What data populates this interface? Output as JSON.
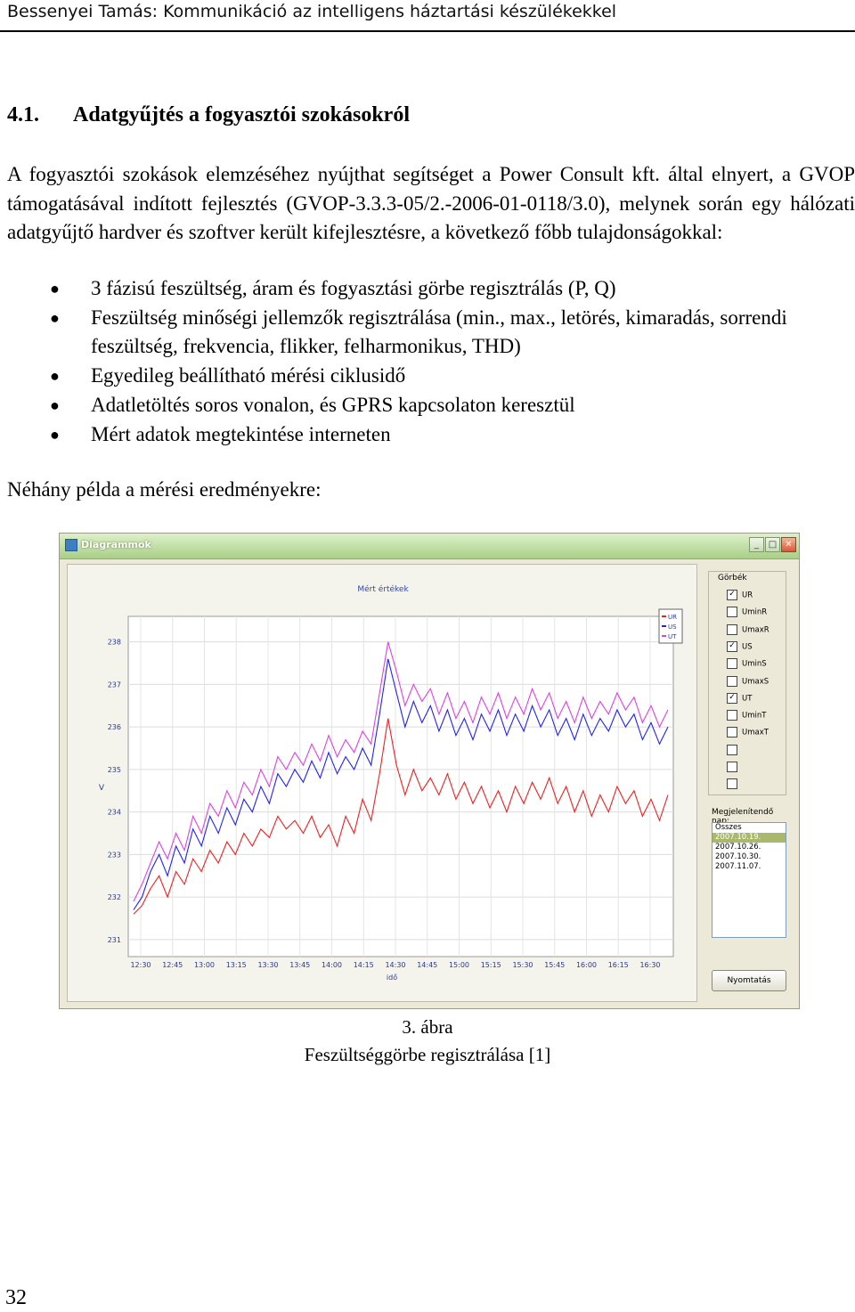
{
  "header": "Bessenyei Tamás: Kommunikáció az intelligens háztartási készülékekkel",
  "section": {
    "number": "4.1.",
    "title": "Adatgyűjtés a fogyasztói szokásokról"
  },
  "paragraph": "A fogyasztói szokások elemzéséhez nyújthat segítséget a Power Consult kft. által elnyert, a GVOP támogatásával indított fejlesztés (GVOP-3.3.3-05/2.-2006-01-0118/3.0), melynek során egy hálózati adatgyűjtő hardver és szoftver került kifejlesztésre, a következő főbb tulajdonságokkal:",
  "bullets": [
    "3 fázisú feszültség, áram és fogyasztási görbe regisztrálás (P, Q)",
    "Feszültség minőségi jellemzők regisztrálása (min., max., letörés, kimaradás, sorrendi feszültség, frekvencia, flikker, felharmonikus, THD)",
    "Egyedileg beállítható mérési ciklusidő",
    "Adatletöltés soros vonalon, és GPRS kapcsolaton keresztül",
    "Mért adatok megtekintése interneten"
  ],
  "examples_intro": "Néhány példa a mérési eredményekre:",
  "window": {
    "title": "Diagrammok",
    "checkbox_group_label": "Görbék",
    "checkboxes": [
      {
        "label": "UR",
        "checked": true
      },
      {
        "label": "UminR",
        "checked": false
      },
      {
        "label": "UmaxR",
        "checked": false
      },
      {
        "label": "US",
        "checked": true
      },
      {
        "label": "UminS",
        "checked": false
      },
      {
        "label": "UmaxS",
        "checked": false
      },
      {
        "label": "UT",
        "checked": true
      },
      {
        "label": "UminT",
        "checked": false
      },
      {
        "label": "UmaxT",
        "checked": false
      },
      {
        "label": "",
        "checked": false
      },
      {
        "label": "",
        "checked": false
      },
      {
        "label": "",
        "checked": false
      }
    ],
    "day_list_label": "Megjelenítendő nap:",
    "days": [
      "Összes",
      "2007.10.19.",
      "2007.10.26.",
      "2007.10.30.",
      "2007.11.07."
    ],
    "selected_day": "2007.10.19.",
    "print_button": "Nyomtatás"
  },
  "chart_data": {
    "type": "line",
    "title": "Mért értékek",
    "xlabel": "idő",
    "ylabel": "V",
    "ylim": [
      230.6,
      238.6
    ],
    "yticks": [
      238,
      237,
      236,
      235,
      234,
      233,
      232,
      231
    ],
    "xticks": [
      "12:30",
      "12:45",
      "13:00",
      "13:15",
      "13:30",
      "13:45",
      "14:00",
      "14:15",
      "14:30",
      "14:45",
      "15:00",
      "15:15",
      "15:30",
      "15:45",
      "16:00",
      "16:15",
      "16:30"
    ],
    "x_start_minutes": 12.5,
    "grid": true,
    "legend_position": "top-right",
    "series": [
      {
        "name": "UR",
        "color": "#ee2020",
        "values": [
          231.6,
          231.8,
          232.2,
          232.5,
          232.0,
          232.6,
          232.3,
          232.9,
          232.6,
          233.1,
          232.8,
          233.3,
          233.0,
          233.5,
          233.2,
          233.6,
          233.4,
          233.9,
          233.6,
          233.8,
          233.5,
          233.9,
          233.4,
          233.7,
          233.2,
          233.9,
          233.5,
          234.3,
          233.8,
          234.9,
          236.2,
          235.1,
          234.4,
          235.0,
          234.5,
          234.8,
          234.4,
          234.9,
          234.3,
          234.7,
          234.2,
          234.6,
          234.1,
          234.5,
          234.0,
          234.6,
          234.2,
          234.7,
          234.3,
          234.8,
          234.2,
          234.6,
          234.0,
          234.5,
          233.9,
          234.4,
          234.0,
          234.6,
          234.2,
          234.5,
          233.9,
          234.3,
          233.8,
          234.4
        ]
      },
      {
        "name": "US",
        "color": "#2222ee",
        "values": [
          231.7,
          232.0,
          232.6,
          233.0,
          232.5,
          233.2,
          232.8,
          233.6,
          233.2,
          233.9,
          233.5,
          234.1,
          233.7,
          234.3,
          234.0,
          234.6,
          234.2,
          234.9,
          234.6,
          235.0,
          234.7,
          235.2,
          234.8,
          235.4,
          234.9,
          235.3,
          235.0,
          235.5,
          235.1,
          236.3,
          237.6,
          236.8,
          236.0,
          236.6,
          236.1,
          236.5,
          235.9,
          236.4,
          235.8,
          236.2,
          235.7,
          236.3,
          235.9,
          236.4,
          235.8,
          236.3,
          235.9,
          236.5,
          236.0,
          236.4,
          235.8,
          236.2,
          235.7,
          236.3,
          235.8,
          236.2,
          235.9,
          236.4,
          236.0,
          236.3,
          235.7,
          236.1,
          235.6,
          236.0
        ]
      },
      {
        "name": "UT",
        "color": "#e040e0",
        "values": [
          231.9,
          232.3,
          232.8,
          233.3,
          232.9,
          233.5,
          233.1,
          233.9,
          233.5,
          234.2,
          233.9,
          234.5,
          234.1,
          234.7,
          234.4,
          235.0,
          234.6,
          235.3,
          235.0,
          235.4,
          235.1,
          235.6,
          235.2,
          235.8,
          235.3,
          235.7,
          235.4,
          235.9,
          235.6,
          236.8,
          238.0,
          237.3,
          236.5,
          237.0,
          236.6,
          236.9,
          236.3,
          236.8,
          236.2,
          236.6,
          236.1,
          236.7,
          236.3,
          236.8,
          236.2,
          236.7,
          236.3,
          236.9,
          236.4,
          236.8,
          236.2,
          236.6,
          236.1,
          236.7,
          236.2,
          236.6,
          236.3,
          236.8,
          236.4,
          236.7,
          236.1,
          236.5,
          236.0,
          236.4
        ]
      }
    ]
  },
  "caption": {
    "number": "3. ábra",
    "text": "Feszültséggörbe regisztrálása [1]"
  },
  "page_number": "32"
}
